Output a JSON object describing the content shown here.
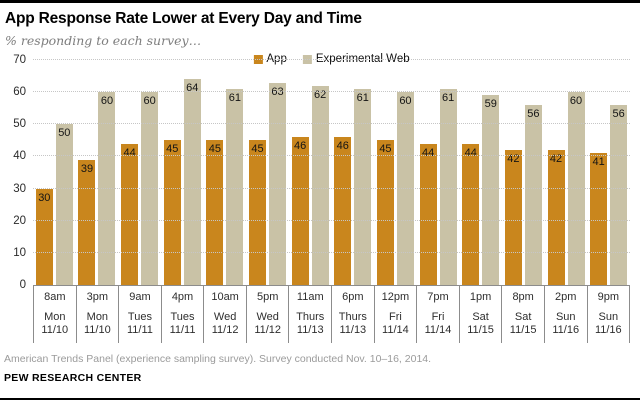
{
  "header": {
    "title": "App Response Rate Lower at Every Day and Time",
    "subtitle": "% responding to each survey…"
  },
  "colors": {
    "app_bar": "#c9861d",
    "web_bar": "#c9c2a6",
    "gridline": "#c6c6c6",
    "axis_line": "#8c8c8c"
  },
  "chart_data": {
    "type": "bar",
    "title": "App Response Rate Lower at Every Day and Time",
    "subtitle": "% responding to each survey…",
    "categories": [
      {
        "time": "8am",
        "day": "Mon",
        "date": "11/10"
      },
      {
        "time": "3pm",
        "day": "Mon",
        "date": "11/10"
      },
      {
        "time": "9am",
        "day": "Tues",
        "date": "11/11"
      },
      {
        "time": "4pm",
        "day": "Tues",
        "date": "11/11"
      },
      {
        "time": "10am",
        "day": "Wed",
        "date": "11/12"
      },
      {
        "time": "5pm",
        "day": "Wed",
        "date": "11/12"
      },
      {
        "time": "11am",
        "day": "Thurs",
        "date": "11/13"
      },
      {
        "time": "6pm",
        "day": "Thurs",
        "date": "11/13"
      },
      {
        "time": "12pm",
        "day": "Fri",
        "date": "11/14"
      },
      {
        "time": "7pm",
        "day": "Fri",
        "date": "11/14"
      },
      {
        "time": "1pm",
        "day": "Sat",
        "date": "11/15"
      },
      {
        "time": "8pm",
        "day": "Sat",
        "date": "11/15"
      },
      {
        "time": "2pm",
        "day": "Sun",
        "date": "11/16"
      },
      {
        "time": "9pm",
        "day": "Sun",
        "date": "11/16"
      }
    ],
    "series": [
      {
        "name": "App",
        "color": "#c9861d",
        "values": [
          30,
          39,
          44,
          45,
          45,
          45,
          46,
          46,
          45,
          44,
          44,
          42,
          42,
          41
        ]
      },
      {
        "name": "Experimental Web",
        "color": "#c9c2a6",
        "values": [
          50,
          60,
          60,
          64,
          61,
          63,
          62,
          61,
          60,
          61,
          59,
          56,
          60,
          56
        ]
      }
    ],
    "ylim": [
      0,
      70
    ],
    "yticks": [
      0,
      10,
      20,
      30,
      40,
      50,
      60,
      70
    ],
    "grid": "horizontal-dotted",
    "legend_position": "top-center",
    "data_labels": "inside-top"
  },
  "footer": {
    "note": "American Trends Panel (experience sampling survey). Survey conducted Nov. 10–16, 2014.",
    "source": "PEW RESEARCH CENTER"
  }
}
